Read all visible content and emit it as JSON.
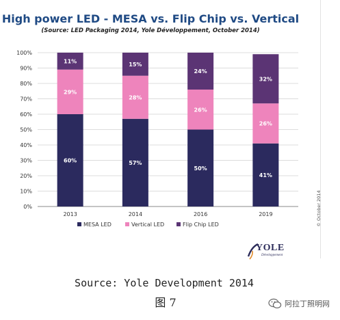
{
  "chart_data": {
    "type": "bar",
    "stacked": true,
    "title": "High power LED - MESA vs. Flip Chip vs. Vertical",
    "subtitle": "(Source: LED Packaging 2014, Yole Développement, October 2014)",
    "categories": [
      "2013",
      "2014",
      "2016",
      "2019"
    ],
    "series": [
      {
        "name": "MESA LED",
        "values": [
          60,
          57,
          50,
          41
        ],
        "color": "#2b2a5e",
        "labels": [
          "60%",
          "57%",
          "50%",
          "41%"
        ]
      },
      {
        "name": "Vertical LED",
        "values": [
          29,
          28,
          26,
          26
        ],
        "color": "#ee84bc",
        "labels": [
          "29%",
          "28%",
          "26%",
          "26%"
        ]
      },
      {
        "name": "Flip Chip LED",
        "values": [
          11,
          15,
          24,
          32
        ],
        "color": "#5b3474",
        "labels": [
          "11%",
          "15%",
          "24%",
          "32%"
        ]
      }
    ],
    "yticks": [
      "0%",
      "10%",
      "20%",
      "30%",
      "40%",
      "50%",
      "60%",
      "70%",
      "80%",
      "90%",
      "100%"
    ],
    "ylim": [
      0,
      100
    ],
    "grid": true,
    "legend_position": "bottom"
  },
  "copyright": "© October 2014",
  "logo": {
    "word": "YOLE",
    "sub": "Développement"
  },
  "caption": "Source: Yole Development 2014",
  "figure_label": "图 7",
  "watermark": {
    "text": "阿拉丁照明网",
    "icon": "wechat-icon"
  }
}
